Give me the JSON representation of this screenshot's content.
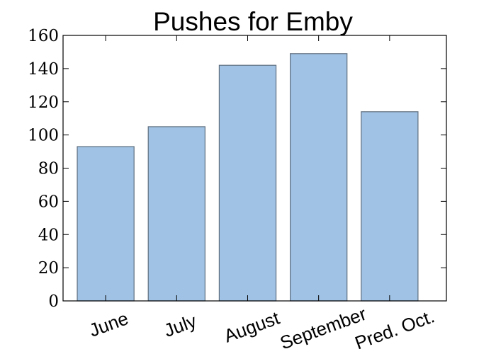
{
  "chart_data": {
    "type": "bar",
    "title": "Pushes for Emby",
    "xlabel": "",
    "ylabel": "",
    "categories": [
      "June",
      "July",
      "August",
      "September",
      "Pred. Oct."
    ],
    "values": [
      93,
      105,
      142,
      149,
      114
    ],
    "ylim": [
      0,
      160
    ],
    "yticks": [
      "0",
      "20",
      "40",
      "60",
      "80",
      "100",
      "120",
      "140",
      "160"
    ],
    "grid": false,
    "legend": "none",
    "colors": {
      "bar_fill": "#a0c2e4",
      "bar_edge": "#5f6f7f",
      "axis": "#000000"
    }
  }
}
